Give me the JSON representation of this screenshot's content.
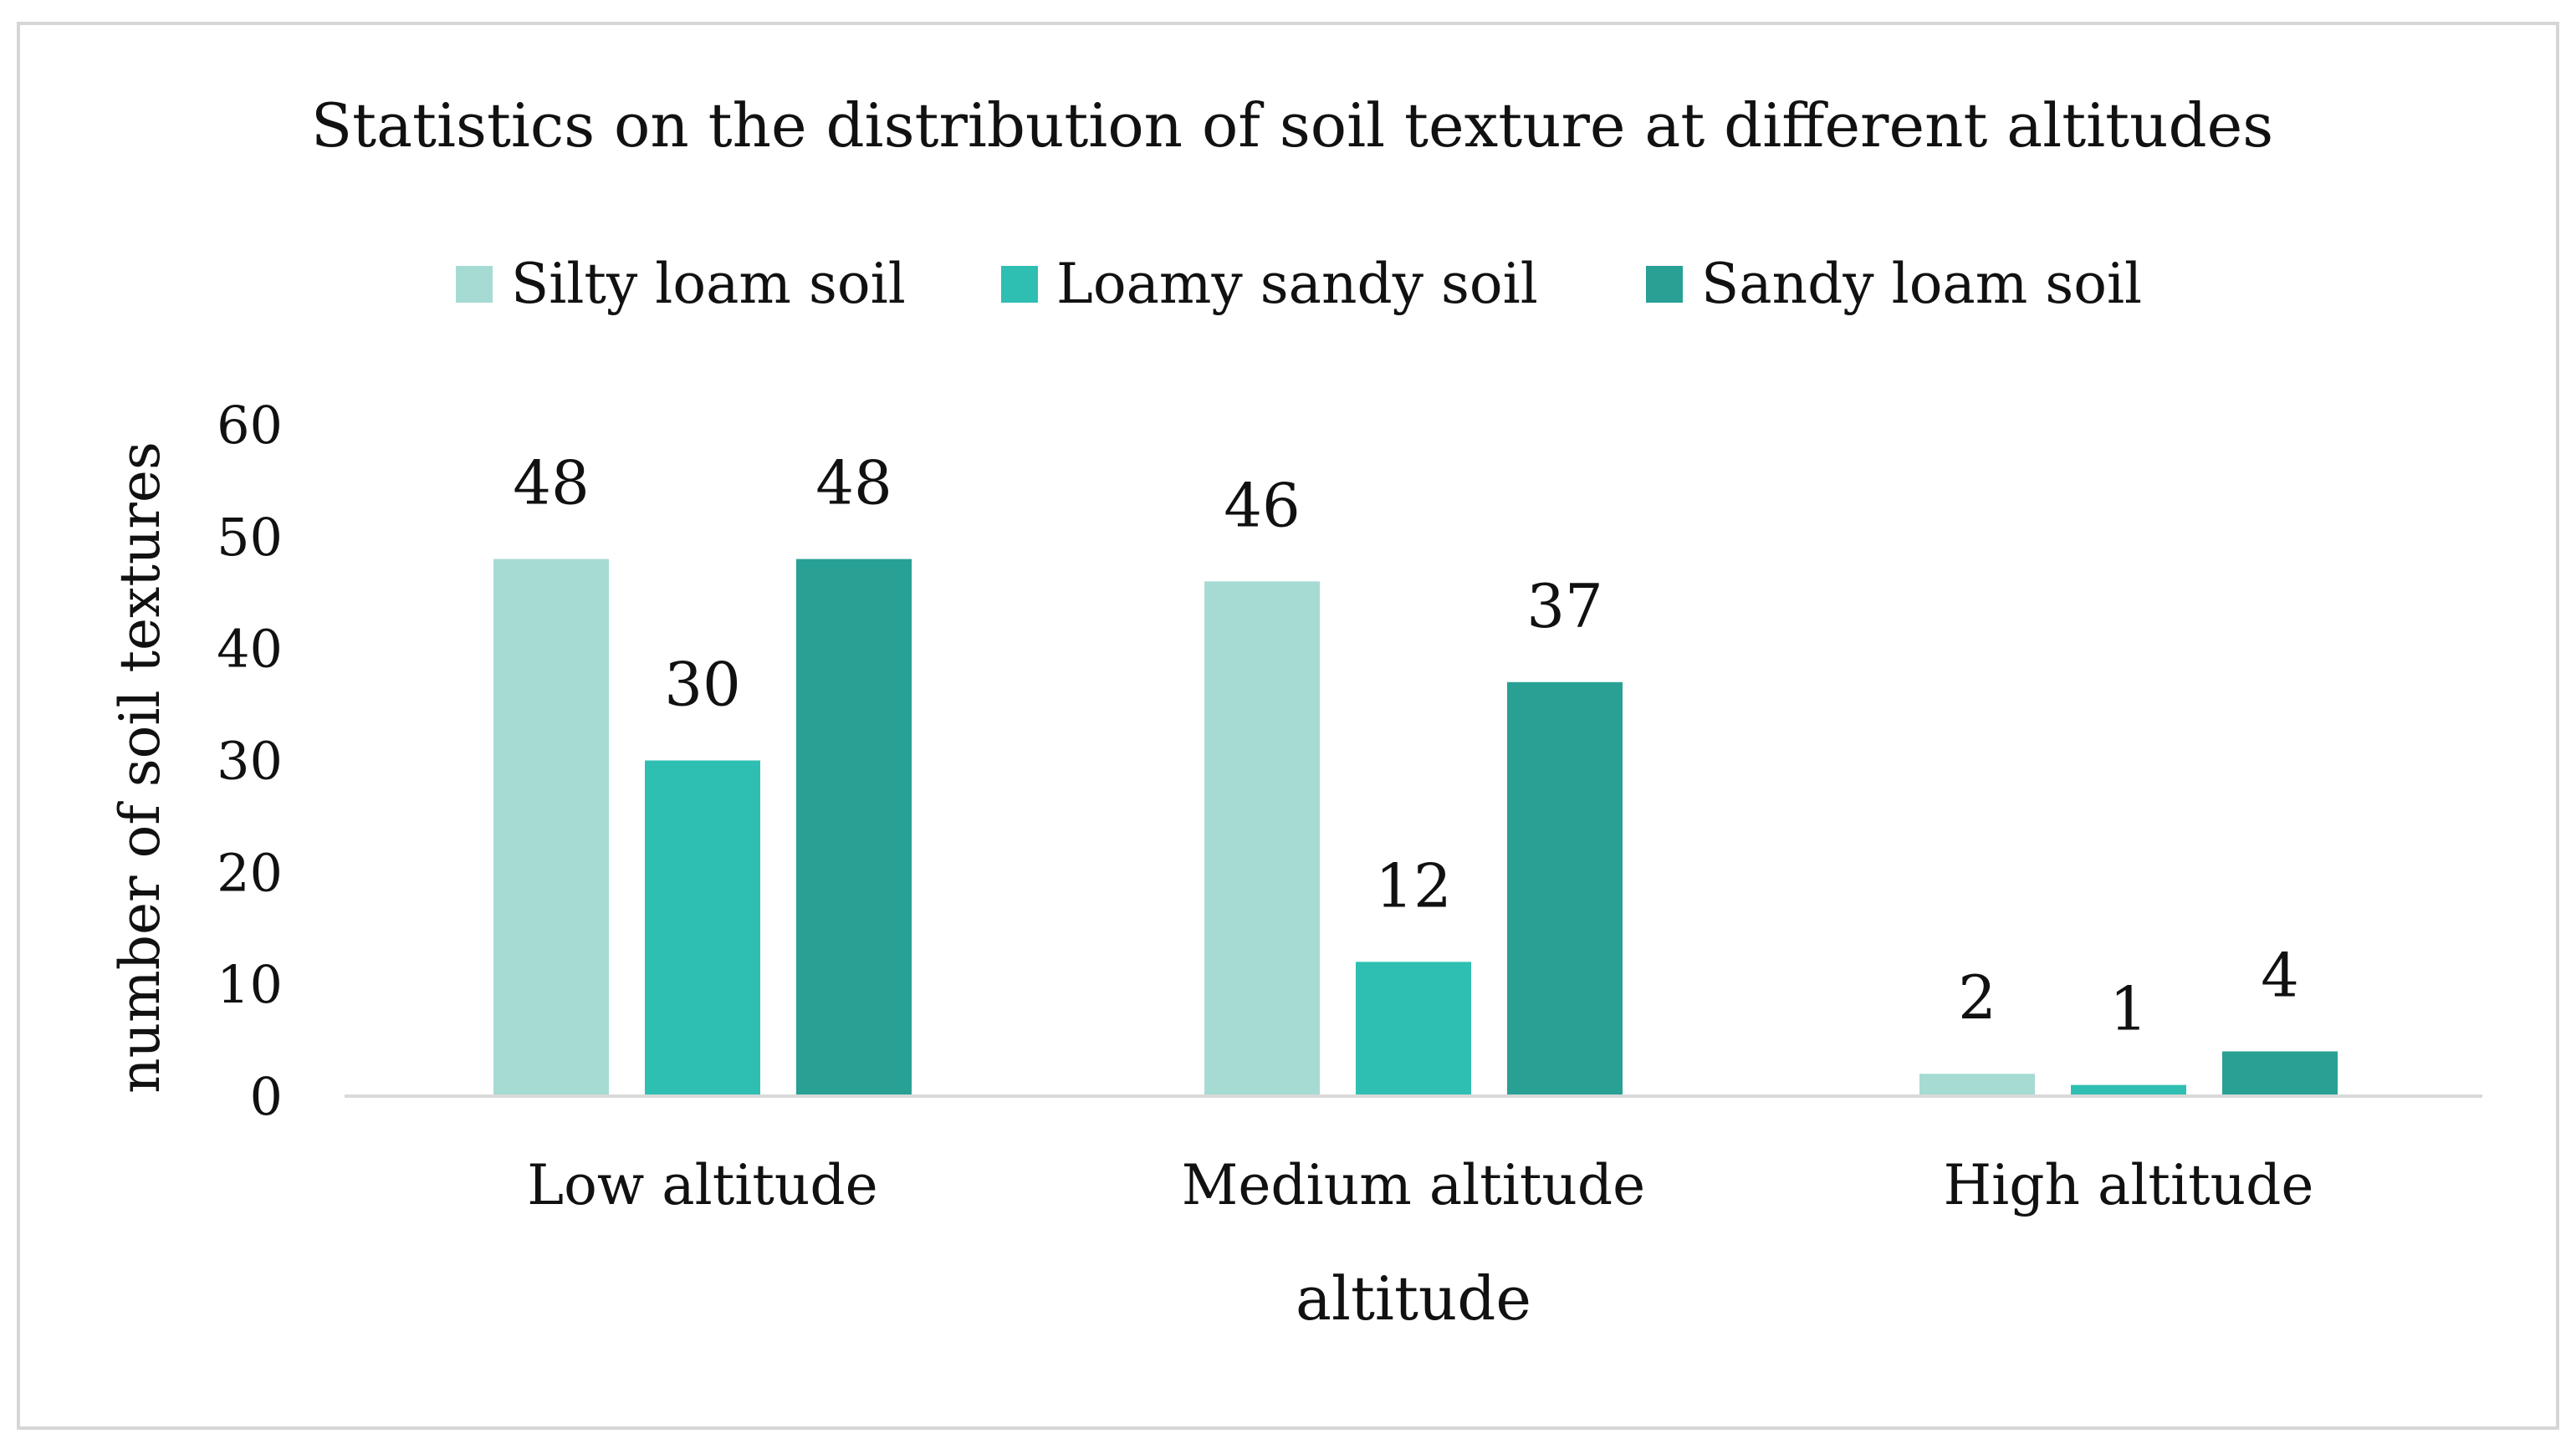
{
  "chart_data": {
    "type": "bar",
    "title": "Statistics on the distribution of soil texture at different altitudes",
    "xlabel": "altitude",
    "ylabel": "number of soil textures",
    "categories": [
      "Low altitude",
      "Medium altitude",
      "High altitude"
    ],
    "series": [
      {
        "name": "Silty loam soil",
        "values": [
          48,
          46,
          2
        ],
        "color": "#a6dbd3"
      },
      {
        "name": "Loamy sandy soil",
        "values": [
          30,
          12,
          1
        ],
        "color": "#2ebfb2"
      },
      {
        "name": "Sandy loam soil",
        "values": [
          48,
          37,
          4
        ],
        "color": "#28a094"
      }
    ],
    "ylim": [
      0,
      60
    ],
    "yticks": [
      0,
      10,
      20,
      30,
      40,
      50,
      60
    ],
    "grid": false,
    "legend": "top-center",
    "data_labels": true
  }
}
